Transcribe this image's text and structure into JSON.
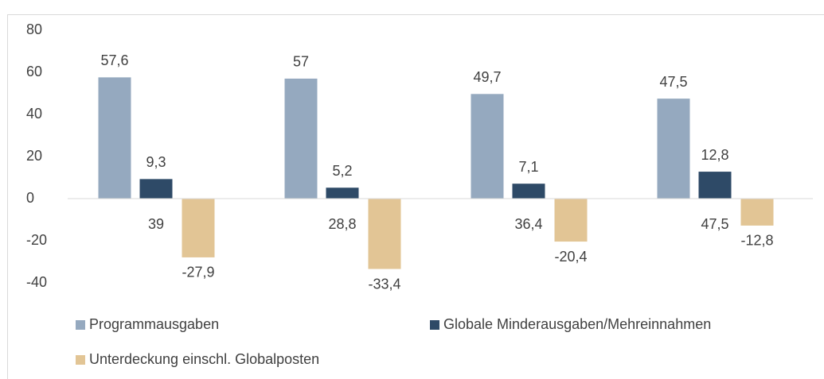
{
  "chart_data": {
    "type": "bar",
    "categories": [
      null,
      null,
      null,
      null
    ],
    "series": [
      {
        "name": "Programmausgaben",
        "color": "#95a9bf",
        "values": [
          57.6,
          57,
          49.7,
          47.5
        ],
        "value_labels": [
          "57,6",
          "57",
          "49,7",
          "47,5"
        ]
      },
      {
        "name": "Globale Minderausgaben/Mehreinnahmen",
        "color": "#2e4a67",
        "values": [
          9.3,
          5.2,
          7.1,
          12.8
        ],
        "value_labels": [
          "9,3",
          "5,2",
          "7,1",
          "12,8"
        ]
      },
      {
        "name": "Unterdeckung einschl. Globalposten",
        "color": "#e2c595",
        "values": [
          -27.9,
          -33.4,
          -20.4,
          -12.8
        ],
        "value_labels": [
          "-27,9",
          "-33,4",
          "-20,4",
          "-12,8"
        ]
      }
    ],
    "annotations": [
      "39",
      "28,8",
      "36,4",
      "47,5"
    ],
    "ylim": [
      -40,
      80
    ],
    "yticks": [
      -40,
      -20,
      0,
      20,
      40,
      60,
      80
    ],
    "grid": false
  }
}
